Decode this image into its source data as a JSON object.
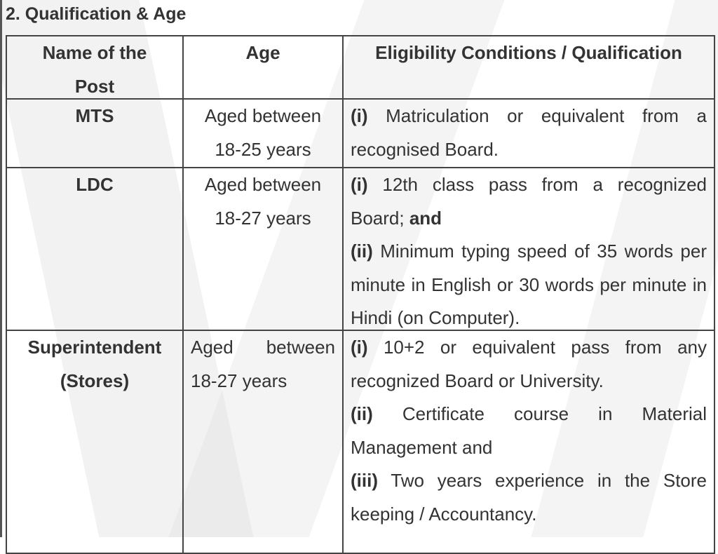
{
  "title": "2. Qualification & Age",
  "headers": [
    "Name of the Post",
    "Age",
    "Eligibility Conditions / Qualification"
  ],
  "rows": [
    {
      "post": "MTS",
      "age": "Aged between 18-25 years",
      "conditions": [
        [
          {
            "t": "(i)",
            "b": true
          },
          {
            "t": " Matriculation or equivalent from a recognised Board."
          }
        ]
      ]
    },
    {
      "post": "LDC",
      "age": "Aged between 18-27 years",
      "conditions": [
        [
          {
            "t": "(i)",
            "b": true
          },
          {
            "t": " 12th class pass from a recognized Board; "
          },
          {
            "t": "and",
            "b": true
          }
        ],
        [
          {
            "t": "(ii)",
            "b": true
          },
          {
            "t": " Minimum typing speed of 35 words per minute in English or 30 words per minute in Hindi (on Computer)."
          }
        ]
      ]
    },
    {
      "post": "Superintendent (Stores)",
      "age": "Aged between 18-27 years",
      "conditions": [
        [
          {
            "t": "(i)",
            "b": true
          },
          {
            "t": " 10+2 or equivalent pass from any recognized Board or University."
          }
        ],
        [
          {
            "t": "(ii)",
            "b": true
          },
          {
            "t": " Certificate course in Material Management and"
          }
        ],
        [
          {
            "t": "(iii)",
            "b": true
          },
          {
            "t": " Two years experience in the Store keeping / Accountancy."
          }
        ]
      ]
    }
  ]
}
